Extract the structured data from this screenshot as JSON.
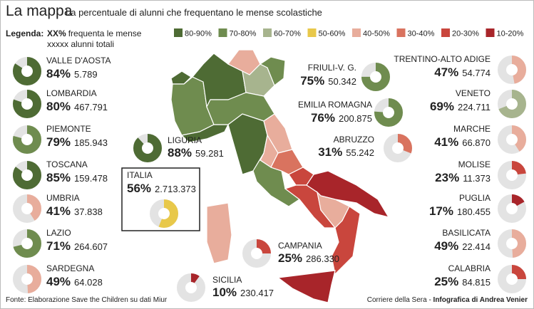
{
  "header": {
    "title": "La mappa",
    "subtitle": "La percentuale di alunni che frequentano le mense scolastiche"
  },
  "legend": {
    "label": "Legenda:",
    "sample_percent": "XX%",
    "sample_text": "frequenta le mense",
    "sample_total": "xxxxx alunni totali",
    "classes": [
      {
        "label": "80-90%",
        "color": "#4e6b34"
      },
      {
        "label": "70-80%",
        "color": "#6f8c4f"
      },
      {
        "label": "60-70%",
        "color": "#a7b48e"
      },
      {
        "label": "50-60%",
        "color": "#e8c84a"
      },
      {
        "label": "40-50%",
        "color": "#e8ad9c"
      },
      {
        "label": "30-40%",
        "color": "#d9735f"
      },
      {
        "label": "20-30%",
        "color": "#c9463d"
      },
      {
        "label": "10-20%",
        "color": "#a8252a"
      }
    ]
  },
  "regions": [
    {
      "name": "VALLE D'AOSTA",
      "percent": 84,
      "percent_label": "84%",
      "students": "5.789",
      "color": "#4e6b34"
    },
    {
      "name": "LOMBARDIA",
      "percent": 80,
      "percent_label": "80%",
      "students": "467.791",
      "color": "#4e6b34"
    },
    {
      "name": "PIEMONTE",
      "percent": 79,
      "percent_label": "79%",
      "students": "185.943",
      "color": "#6f8c4f"
    },
    {
      "name": "TOSCANA",
      "percent": 85,
      "percent_label": "85%",
      "students": "159.478",
      "color": "#4e6b34"
    },
    {
      "name": "UMBRIA",
      "percent": 41,
      "percent_label": "41%",
      "students": "37.838",
      "color": "#e8ad9c"
    },
    {
      "name": "LAZIO",
      "percent": 71,
      "percent_label": "71%",
      "students": "264.607",
      "color": "#6f8c4f"
    },
    {
      "name": "SARDEGNA",
      "percent": 49,
      "percent_label": "49%",
      "students": "64.028",
      "color": "#e8ad9c"
    },
    {
      "name": "TRENTINO-ALTO ADIGE",
      "percent": 47,
      "percent_label": "47%",
      "students": "54.774",
      "color": "#e8ad9c"
    },
    {
      "name": "VENETO",
      "percent": 69,
      "percent_label": "69%",
      "students": "224.711",
      "color": "#a7b48e"
    },
    {
      "name": "MARCHE",
      "percent": 41,
      "percent_label": "41%",
      "students": "66.870",
      "color": "#e8ad9c"
    },
    {
      "name": "MOLISE",
      "percent": 23,
      "percent_label": "23%",
      "students": "11.373",
      "color": "#c9463d"
    },
    {
      "name": "PUGLIA",
      "percent": 17,
      "percent_label": "17%",
      "students": "180.455",
      "color": "#a8252a"
    },
    {
      "name": "BASILICATA",
      "percent": 49,
      "percent_label": "49%",
      "students": "22.414",
      "color": "#e8ad9c"
    },
    {
      "name": "CALABRIA",
      "percent": 25,
      "percent_label": "25%",
      "students": "84.815",
      "color": "#c9463d"
    },
    {
      "name": "FRIULI-V. G.",
      "percent": 75,
      "percent_label": "75%",
      "students": "50.342",
      "color": "#6f8c4f"
    },
    {
      "name": "EMILIA ROMAGNA",
      "percent": 76,
      "percent_label": "76%",
      "students": "200.875",
      "color": "#6f8c4f"
    },
    {
      "name": "LIGURIA",
      "percent": 88,
      "percent_label": "88%",
      "students": "59.281",
      "color": "#4e6b34"
    },
    {
      "name": "ABRUZZO",
      "percent": 31,
      "percent_label": "31%",
      "students": "55.242",
      "color": "#d9735f"
    },
    {
      "name": "CAMPANIA",
      "percent": 25,
      "percent_label": "25%",
      "students": "286.330",
      "color": "#c9463d"
    },
    {
      "name": "SICILIA",
      "percent": 10,
      "percent_label": "10%",
      "students": "230.417",
      "color": "#a8252a"
    }
  ],
  "italia": {
    "name": "ITALIA",
    "percent": 56,
    "percent_label": "56%",
    "students": "2.713.373",
    "color": "#e8c84a"
  },
  "footer": {
    "source": "Fonte: Elaborazione Save the Children su dati Miur",
    "credit": "Corriere della Sera - ",
    "author": "Infografica di Andrea Venier"
  }
}
